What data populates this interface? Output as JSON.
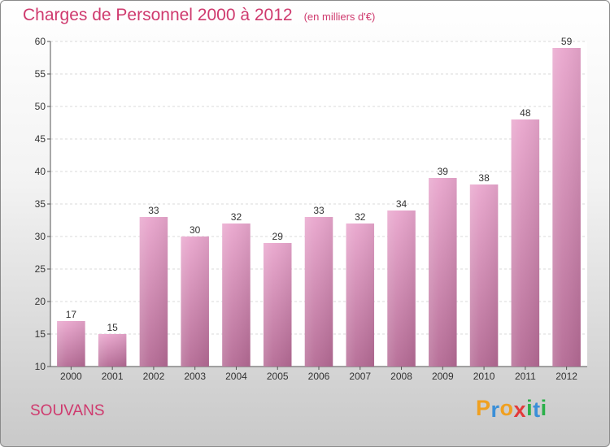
{
  "chart_data": {
    "type": "bar",
    "title": "Charges de Personnel 2000 à 2012",
    "subtitle": "(en milliers d'€)",
    "xlabel": "",
    "ylabel": "",
    "categories": [
      "2000",
      "2001",
      "2002",
      "2003",
      "2004",
      "2005",
      "2006",
      "2007",
      "2008",
      "2009",
      "2010",
      "2011",
      "2012"
    ],
    "values": [
      17,
      15,
      33,
      30,
      32,
      29,
      33,
      32,
      34,
      39,
      38,
      48,
      59
    ],
    "ylim": [
      10,
      60
    ],
    "yticks": [
      10,
      15,
      20,
      25,
      30,
      35,
      40,
      45,
      50,
      55,
      60
    ],
    "grid": true,
    "bar_color": "#d98ab6"
  },
  "footer": {
    "place_name": "SOUVANS",
    "logo_letters": [
      "P",
      "r",
      "o",
      "x",
      "i",
      "t",
      "i"
    ],
    "logo_colors": [
      "#f0a020",
      "#3a8fd8",
      "#f0a020",
      "#e23a3a",
      "#2bb04a",
      "#3a8fd8",
      "#2bb04a"
    ]
  }
}
